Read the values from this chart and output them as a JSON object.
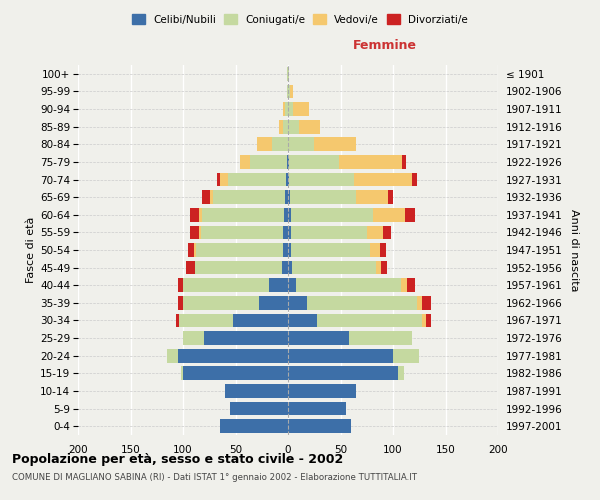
{
  "age_groups": [
    "0-4",
    "5-9",
    "10-14",
    "15-19",
    "20-24",
    "25-29",
    "30-34",
    "35-39",
    "40-44",
    "45-49",
    "50-54",
    "55-59",
    "60-64",
    "65-69",
    "70-74",
    "75-79",
    "80-84",
    "85-89",
    "90-94",
    "95-99",
    "100+"
  ],
  "birth_years": [
    "1997-2001",
    "1992-1996",
    "1987-1991",
    "1982-1986",
    "1977-1981",
    "1972-1976",
    "1967-1971",
    "1962-1966",
    "1957-1961",
    "1952-1956",
    "1947-1951",
    "1942-1946",
    "1937-1941",
    "1932-1936",
    "1927-1931",
    "1922-1926",
    "1917-1921",
    "1912-1916",
    "1907-1911",
    "1902-1906",
    "≤ 1901"
  ],
  "males": {
    "celibi": [
      65,
      55,
      60,
      100,
      105,
      80,
      52,
      28,
      18,
      6,
      5,
      5,
      4,
      3,
      2,
      1,
      0,
      0,
      0,
      0,
      0
    ],
    "coniugati": [
      0,
      0,
      0,
      2,
      10,
      20,
      52,
      72,
      82,
      83,
      83,
      78,
      78,
      68,
      55,
      35,
      15,
      5,
      3,
      1,
      1
    ],
    "vedovi": [
      0,
      0,
      0,
      0,
      0,
      0,
      0,
      0,
      0,
      0,
      2,
      2,
      3,
      3,
      8,
      10,
      15,
      4,
      2,
      0,
      0
    ],
    "divorziati": [
      0,
      0,
      0,
      0,
      0,
      0,
      3,
      5,
      5,
      8,
      5,
      8,
      8,
      8,
      3,
      0,
      0,
      0,
      0,
      0,
      0
    ]
  },
  "females": {
    "nubili": [
      60,
      55,
      65,
      105,
      100,
      58,
      28,
      18,
      8,
      4,
      3,
      3,
      3,
      2,
      1,
      1,
      0,
      0,
      0,
      0,
      0
    ],
    "coniugate": [
      0,
      0,
      0,
      5,
      25,
      60,
      100,
      105,
      100,
      80,
      75,
      72,
      78,
      63,
      62,
      48,
      25,
      10,
      5,
      2,
      1
    ],
    "vedove": [
      0,
      0,
      0,
      0,
      0,
      0,
      3,
      5,
      5,
      5,
      10,
      15,
      30,
      30,
      55,
      60,
      40,
      20,
      15,
      3,
      0
    ],
    "divorziate": [
      0,
      0,
      0,
      0,
      0,
      0,
      5,
      8,
      8,
      5,
      5,
      8,
      10,
      5,
      5,
      3,
      0,
      0,
      0,
      0,
      0
    ]
  },
  "colors": {
    "celibi_nubili": "#3d6fa8",
    "coniugati_e": "#c5d9a0",
    "vedovi_e": "#f5c86e",
    "divorziati_e": "#cc2222"
  },
  "xlim": 200,
  "title": "Popolazione per età, sesso e stato civile - 2002",
  "subtitle": "COMUNE DI MAGLIANO SABINA (RI) - Dati ISTAT 1° gennaio 2002 - Elaborazione TUTTITALIA.IT",
  "xlabel_right": "Femmine",
  "ylabel_left": "Fasce di età",
  "ylabel_right": "Anni di nascita",
  "bg_color": "#f0f0eb"
}
